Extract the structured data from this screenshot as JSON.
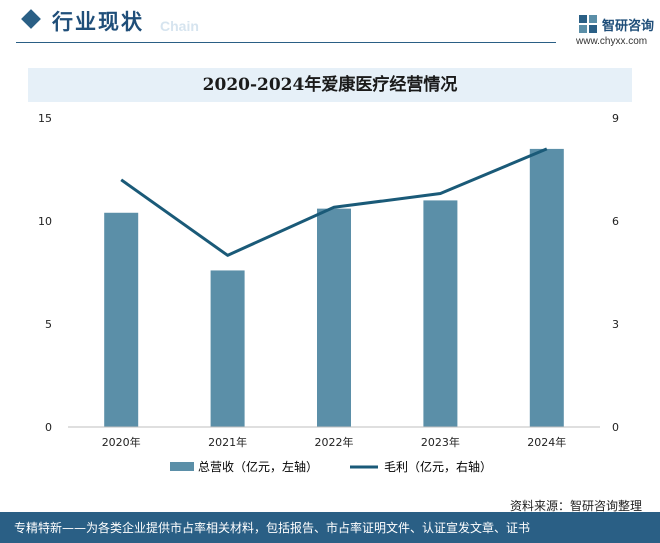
{
  "header": {
    "section_title": "行业现状",
    "section_title_en": "Chain",
    "brand_name": "智研咨询",
    "brand_url": "www.chyxx.com"
  },
  "colors": {
    "bar": "#5b8fa8",
    "line": "#1a5a78",
    "accent": "#2a5f85",
    "title_bg": "#e6f0f8"
  },
  "chart_data": {
    "type": "bar",
    "title": "2020-2024年爱康医疗经营情况",
    "categories": [
      "2020年",
      "2021年",
      "2022年",
      "2023年",
      "2024年"
    ],
    "series": [
      {
        "name": "总营收（亿元，左轴）",
        "type": "bar",
        "axis": "left",
        "values": [
          10.4,
          7.6,
          10.6,
          11.0,
          13.5
        ]
      },
      {
        "name": "毛利（亿元，右轴）",
        "type": "line",
        "axis": "right",
        "values": [
          7.2,
          5.0,
          6.4,
          6.8,
          8.1
        ]
      }
    ],
    "y_left": {
      "min": 0,
      "max": 15,
      "ticks": [
        0,
        5,
        10,
        15
      ]
    },
    "y_right": {
      "min": 0,
      "max": 9,
      "ticks": [
        0,
        3,
        6,
        9
      ]
    },
    "grid": false,
    "legend_position": "bottom"
  },
  "footer": {
    "source": "资料来源：智研咨询整理",
    "tagline": "专精特新——为各类企业提供市占率相关材料，包括报告、市占率证明文件、认证宣发文章、证书"
  }
}
